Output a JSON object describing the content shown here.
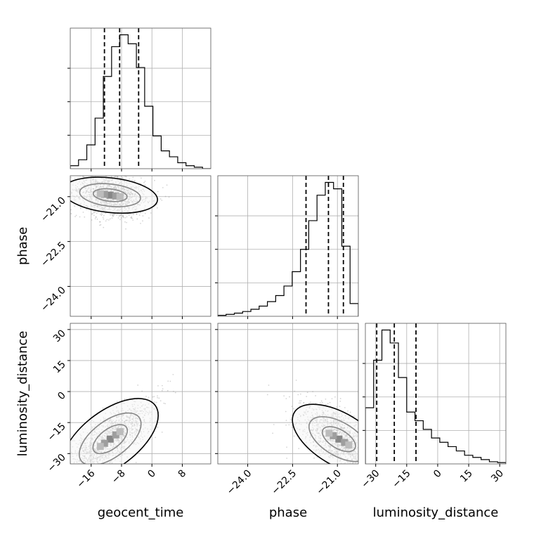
{
  "chart_data": {
    "type": "corner",
    "parameters": [
      "geocent_time",
      "phase",
      "luminosity_distance"
    ],
    "axis_labels": {
      "x": [
        "geocent_time",
        "phase",
        "luminosity_distance"
      ],
      "y": [
        "phase",
        "luminosity_distance"
      ]
    },
    "ranges": {
      "geocent_time": [
        -21.5,
        15.5
      ],
      "phase": [
        -25.0,
        -20.3
      ],
      "luminosity_distance": [
        -35.0,
        33.0
      ]
    },
    "ticks": {
      "geocent_time": [
        -16,
        -8,
        0,
        8
      ],
      "phase": [
        -24.0,
        -22.5,
        -21.0
      ],
      "luminosity_distance": [
        -30,
        -15,
        0,
        15,
        30
      ]
    },
    "tick_labels": {
      "geocent_time": [
        "−16",
        "−8",
        "0",
        "8"
      ],
      "phase": [
        "−24.0",
        "−22.5",
        "−21.0"
      ],
      "luminosity_distance": [
        "−30",
        "−15",
        "0",
        "15",
        "30"
      ]
    },
    "quantiles": {
      "geocent_time": [
        -12.5,
        -8.5,
        -3.5
      ],
      "phase": [
        -22.05,
        -21.3,
        -20.8
      ],
      "luminosity_distance": [
        -29.5,
        -21.0,
        -10.5
      ]
    },
    "histograms": {
      "geocent_time": [
        1,
        3,
        8,
        17,
        31,
        41,
        45,
        42,
        34,
        21,
        11,
        6,
        4,
        2,
        1,
        0.5,
        0
      ],
      "phase": [
        0.3,
        0.6,
        1,
        1.5,
        2.2,
        3.2,
        4.6,
        6.5,
        9.5,
        14,
        21,
        30,
        38,
        42,
        40,
        22,
        4
      ],
      "luminosity_distance": [
        13,
        24,
        31,
        28,
        20,
        12,
        10,
        8,
        6,
        5,
        4,
        3,
        2,
        1.5,
        1,
        0.5,
        0.3
      ]
    },
    "correlations": [
      {
        "x": "geocent_time",
        "y": "phase",
        "center": [
          -11,
          -20.95
        ],
        "shape": "elongated-left-tail"
      },
      {
        "x": "geocent_time",
        "y": "luminosity_distance",
        "center": [
          -11,
          -23
        ],
        "shape": "positive-correlation"
      },
      {
        "x": "phase",
        "y": "luminosity_distance",
        "center": [
          -20.95,
          -23
        ],
        "shape": "negative-correlation"
      }
    ],
    "grid": true
  }
}
